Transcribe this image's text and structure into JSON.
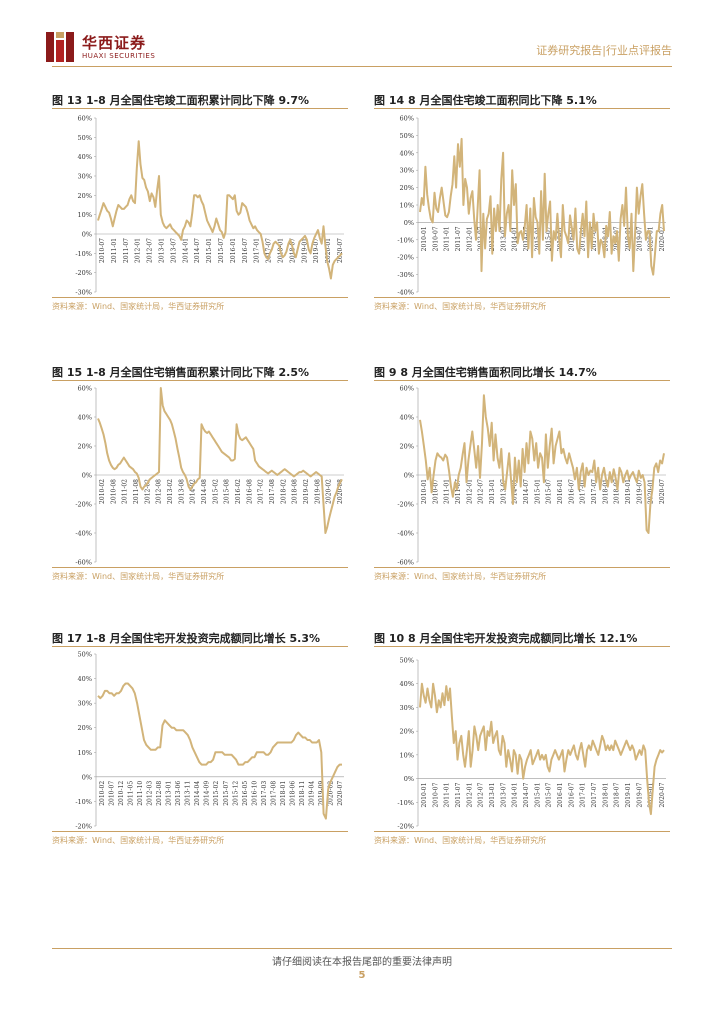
{
  "header": {
    "brand_cn": "华西证券",
    "brand_en": "HUAXI SECURITIES",
    "report_type": "证券研究报告|行业点评报告"
  },
  "colors": {
    "line": "#d2b47a",
    "accent": "#c9a063",
    "brand": "#8b1a1a"
  },
  "figures": [
    {
      "title": "图 13 1-8 月全国住宅竣工面积累计同比下降 9.7%",
      "source": "资料来源：Wind、国家统计局，华西证券研究所"
    },
    {
      "title": "图 14 8 月全国住宅竣工面积同比下降 5.1%",
      "source": "资料来源：Wind、国家统计局，华西证券研究所"
    },
    {
      "title": "图 15 1-8 月全国住宅销售面积累计同比下降 2.5%",
      "source": "资料来源：Wind、国家统计局，华西证券研究所"
    },
    {
      "title": "图 9 8 月全国住宅销售面积同比增长 14.7%",
      "source": "资料来源：Wind、国家统计局，华西证券研究所"
    },
    {
      "title": "图 17 1-8 月全国住宅开发投资完成额同比增长 5.3%",
      "source": "资料来源：Wind、国家统计局，华西证券研究所"
    },
    {
      "title": "图 10 8 月全国住宅开发投资完成额同比增长 12.1%",
      "source": "资料来源：Wind、国家统计局，华西证券研究所"
    }
  ],
  "chart_data": [
    {
      "type": "line",
      "ylim": [
        -30,
        60
      ],
      "yticks": [
        "-30%",
        "-20%",
        "-10%",
        "0%",
        "10%",
        "20%",
        "30%",
        "40%",
        "50%",
        "60%"
      ],
      "xticks": [
        "2010-07",
        "2011-01",
        "2011-07",
        "2012-01",
        "2012-07",
        "2013-01",
        "2013-07",
        "2014-01",
        "2014-07",
        "2015-01",
        "2015-07",
        "2016-01",
        "2016-07",
        "2017-01",
        "2017-07",
        "2018-01",
        "2018-07",
        "2019-01",
        "2019-07",
        "2020-01",
        "2020-07"
      ],
      "series": [
        {
          "values": [
            7,
            10,
            13,
            16,
            14,
            12,
            11,
            8,
            4,
            8,
            12,
            15,
            14,
            13,
            13,
            14,
            15,
            18,
            20,
            17,
            16,
            34,
            48,
            36,
            29,
            28,
            24,
            22,
            17,
            21,
            19,
            14,
            23,
            30,
            10,
            6,
            4,
            3,
            4,
            5,
            3,
            2,
            1,
            0,
            -1,
            -3,
            2,
            4,
            7,
            6,
            4,
            11,
            20,
            20,
            19,
            20,
            17,
            15,
            11,
            7,
            5,
            3,
            1,
            4,
            8,
            5,
            2,
            1,
            -2,
            1,
            20,
            20,
            19,
            18,
            20,
            12,
            10,
            11,
            16,
            15,
            14,
            11,
            7,
            5,
            3,
            4,
            2,
            1,
            0,
            -4,
            -10,
            -12,
            -13,
            -10,
            -8,
            -5,
            -4,
            -5,
            -6,
            -10,
            -12,
            -11,
            -9,
            -5,
            -3,
            -6,
            -10,
            -12,
            -8,
            -4,
            -3,
            -2,
            -1,
            -3,
            -8,
            -10,
            -5,
            -2,
            0,
            2,
            -2,
            -5,
            4,
            -6,
            -14,
            -18,
            -23,
            -16,
            -14,
            -13,
            -12,
            -11,
            -10
          ]
        }
      ]
    },
    {
      "type": "line",
      "ylim": [
        -40,
        60
      ],
      "yticks": [
        "-40%",
        "-30%",
        "-20%",
        "-10%",
        "0%",
        "10%",
        "20%",
        "30%",
        "40%",
        "50%",
        "60%"
      ],
      "xticks": [
        "2010-01",
        "2010-07",
        "2011-01",
        "2011-07",
        "2012-01",
        "2012-07",
        "2013-01",
        "2013-07",
        "2014-01",
        "2014-07",
        "2015-01",
        "2015-07",
        "2016-01",
        "2016-07",
        "2017-01",
        "2017-07",
        "2018-01",
        "2018-07",
        "2019-01",
        "2019-07",
        "2020-01",
        "2020-07"
      ],
      "series": [
        {
          "values": [
            6,
            14,
            10,
            32,
            16,
            8,
            2,
            0,
            17,
            8,
            6,
            14,
            20,
            12,
            4,
            3,
            6,
            15,
            22,
            38,
            20,
            45,
            32,
            48,
            10,
            25,
            20,
            5,
            14,
            18,
            2,
            -10,
            10,
            30,
            -28,
            5,
            -15,
            2,
            5,
            15,
            -18,
            8,
            -5,
            10,
            -5,
            25,
            40,
            -8,
            5,
            10,
            -5,
            30,
            10,
            22,
            -12,
            -6,
            -5,
            -10,
            -2,
            10,
            -15,
            8,
            -20,
            14,
            3,
            0,
            -18,
            18,
            -10,
            28,
            -5,
            5,
            12,
            -22,
            -5,
            -10,
            5,
            -10,
            -20,
            10,
            -5,
            -8,
            -12,
            4,
            -3,
            -10,
            8,
            -15,
            -18,
            -5,
            5,
            -8,
            12,
            -20,
            0,
            -15,
            5,
            -5,
            0,
            -18,
            -10,
            -12,
            -20,
            -2,
            -8,
            6,
            -18,
            -8,
            -12,
            -5,
            -22,
            2,
            10,
            -2,
            20,
            -8,
            -15,
            5,
            -28,
            -6,
            20,
            5,
            15,
            22,
            5,
            -10,
            -5,
            -5,
            -25,
            -30,
            -18,
            -5,
            -5,
            5,
            10,
            -5
          ]
        }
      ]
    },
    {
      "type": "line",
      "ylim": [
        -60,
        60
      ],
      "yticks": [
        "-60%",
        "-40%",
        "-20%",
        "0%",
        "20%",
        "40%",
        "60%"
      ],
      "xticks": [
        "2010-02",
        "2010-08",
        "2011-02",
        "2011-08",
        "2012-02",
        "2012-08",
        "2013-02",
        "2013-08",
        "2014-02",
        "2014-08",
        "2015-02",
        "2015-08",
        "2016-02",
        "2016-08",
        "2017-02",
        "2017-08",
        "2018-02",
        "2018-08",
        "2019-02",
        "2019-08",
        "2020-02",
        "2020-08"
      ],
      "series": [
        {
          "values": [
            39,
            36,
            32,
            28,
            22,
            15,
            10,
            7,
            5,
            4,
            5,
            7,
            8,
            10,
            12,
            10,
            8,
            6,
            5,
            4,
            2,
            1,
            -2,
            -8,
            -10,
            -8,
            -7,
            -5,
            -3,
            -2,
            -1,
            0,
            1,
            2,
            60,
            48,
            44,
            42,
            40,
            38,
            35,
            30,
            25,
            18,
            12,
            5,
            2,
            0,
            -3,
            -8,
            -10,
            -8,
            -6,
            -5,
            -3,
            -2,
            35,
            32,
            30,
            29,
            30,
            28,
            26,
            24,
            22,
            20,
            18,
            16,
            15,
            14,
            13,
            12,
            10,
            10,
            11,
            35,
            28,
            25,
            24,
            25,
            26,
            24,
            22,
            20,
            18,
            10,
            8,
            6,
            5,
            4,
            3,
            2,
            1,
            2,
            3,
            2,
            1,
            0,
            1,
            2,
            3,
            4,
            3,
            2,
            1,
            0,
            -1,
            0,
            1,
            2,
            2,
            3,
            2,
            1,
            0,
            -1,
            0,
            1,
            2,
            1,
            0,
            -1,
            -20,
            -40,
            -36,
            -30,
            -25,
            -20,
            -15,
            -12,
            -8,
            -5,
            -3
          ]
        }
      ]
    },
    {
      "type": "line",
      "ylim": [
        -60,
        60
      ],
      "yticks": [
        "-60%",
        "-40%",
        "-20%",
        "0%",
        "20%",
        "40%",
        "60%"
      ],
      "xticks": [
        "2010-01",
        "2010-07",
        "2011-01",
        "2011-07",
        "2012-01",
        "2012-07",
        "2013-01",
        "2013-07",
        "2014-01",
        "2014-07",
        "2015-01",
        "2015-07",
        "2016-01",
        "2016-07",
        "2017-01",
        "2017-07",
        "2018-01",
        "2018-07",
        "2019-01",
        "2019-07",
        "2020-01",
        "2020-07"
      ],
      "series": [
        {
          "values": [
            38,
            30,
            20,
            10,
            -3,
            5,
            -12,
            0,
            10,
            15,
            13,
            12,
            10,
            14,
            12,
            3,
            -8,
            -15,
            -5,
            -10,
            0,
            5,
            14,
            22,
            -5,
            10,
            20,
            30,
            18,
            5,
            20,
            -2,
            22,
            55,
            40,
            32,
            20,
            36,
            10,
            28,
            12,
            5,
            18,
            -5,
            -10,
            2,
            15,
            -3,
            -20,
            12,
            -5,
            10,
            -8,
            18,
            2,
            22,
            8,
            30,
            25,
            10,
            22,
            5,
            15,
            12,
            -5,
            28,
            5,
            20,
            32,
            8,
            20,
            25,
            30,
            15,
            18,
            12,
            8,
            15,
            10,
            5,
            -3,
            5,
            -10,
            2,
            8,
            -8,
            5,
            0,
            3,
            2,
            10,
            -5,
            5,
            -10,
            0,
            5,
            -3,
            -8,
            2,
            -5,
            4,
            -2,
            -10,
            5,
            2,
            -5,
            0,
            3,
            -3,
            0,
            2,
            -2,
            -5,
            3,
            -2,
            0,
            -5,
            -38,
            -40,
            -20,
            -10,
            5,
            8,
            2,
            10,
            8,
            15
          ]
        }
      ]
    },
    {
      "type": "line",
      "ylim": [
        -20,
        50
      ],
      "yticks": [
        "-20%",
        "-10%",
        "0%",
        "10%",
        "20%",
        "30%",
        "40%",
        "50%"
      ],
      "xticks": [
        "2010-02",
        "2010-07",
        "2010-12",
        "2011-05",
        "2011-10",
        "2012-03",
        "2012-08",
        "2013-01",
        "2013-06",
        "2013-11",
        "2014-04",
        "2014-09",
        "2015-02",
        "2015-07",
        "2015-12",
        "2016-05",
        "2016-10",
        "2017-03",
        "2017-08",
        "2018-01",
        "2018-06",
        "2018-11",
        "2019-04",
        "2019-09",
        "2020-02",
        "2020-07"
      ],
      "series": [
        {
          "values": [
            33,
            32,
            33,
            35,
            35,
            34,
            34,
            33,
            34,
            34,
            35,
            37,
            38,
            38,
            37,
            36,
            34,
            30,
            25,
            20,
            15,
            13,
            12,
            11,
            11,
            11,
            12,
            12,
            21,
            23,
            22,
            21,
            20,
            20,
            19,
            19,
            19,
            19,
            18,
            17,
            15,
            12,
            10,
            8,
            6,
            5,
            5,
            5,
            6,
            6,
            7,
            10,
            10,
            10,
            10,
            9,
            9,
            9,
            9,
            8,
            7,
            5,
            5,
            5,
            6,
            6,
            7,
            8,
            8,
            10,
            10,
            10,
            10,
            9,
            9,
            10,
            12,
            13,
            14,
            14,
            14,
            14,
            14,
            14,
            14,
            15,
            17,
            18,
            17,
            16,
            16,
            15,
            15,
            14,
            14,
            14,
            15,
            10,
            -15,
            -17,
            -5,
            -2,
            0,
            2,
            4,
            5,
            5
          ]
        }
      ]
    },
    {
      "type": "line",
      "ylim": [
        -20,
        50
      ],
      "yticks": [
        "-20%",
        "-10%",
        "0%",
        "10%",
        "20%",
        "30%",
        "40%",
        "50%"
      ],
      "xticks": [
        "2010-01",
        "2010-07",
        "2011-01",
        "2011-07",
        "2012-01",
        "2012-07",
        "2013-01",
        "2013-07",
        "2014-01",
        "2014-07",
        "2015-01",
        "2015-07",
        "2016-01",
        "2016-07",
        "2017-01",
        "2017-07",
        "2018-01",
        "2018-07",
        "2019-01",
        "2019-07",
        "2020-01",
        "2020-07"
      ],
      "series": [
        {
          "values": [
            30,
            40,
            35,
            32,
            38,
            33,
            30,
            40,
            35,
            28,
            33,
            30,
            36,
            31,
            39,
            33,
            38,
            26,
            15,
            20,
            8,
            15,
            18,
            10,
            5,
            12,
            20,
            5,
            12,
            22,
            18,
            12,
            18,
            20,
            22,
            12,
            20,
            18,
            24,
            15,
            18,
            20,
            12,
            10,
            18,
            15,
            5,
            12,
            8,
            3,
            12,
            10,
            2,
            10,
            8,
            0,
            5,
            8,
            10,
            12,
            6,
            8,
            10,
            12,
            8,
            10,
            8,
            10,
            5,
            3,
            8,
            10,
            12,
            10,
            8,
            10,
            12,
            3,
            8,
            12,
            10,
            12,
            14,
            10,
            8,
            12,
            15,
            10,
            5,
            12,
            14,
            12,
            16,
            14,
            12,
            10,
            14,
            18,
            16,
            12,
            14,
            12,
            14,
            12,
            16,
            14,
            12,
            10,
            12,
            14,
            16,
            14,
            12,
            14,
            12,
            8,
            10,
            12,
            10,
            14,
            12,
            0,
            -10,
            -15,
            -5,
            5,
            8,
            10,
            12,
            11,
            12
          ]
        }
      ]
    }
  ],
  "footer": {
    "notice": "请仔细阅读在本报告尾部的重要法律声明",
    "page_number": "5"
  }
}
